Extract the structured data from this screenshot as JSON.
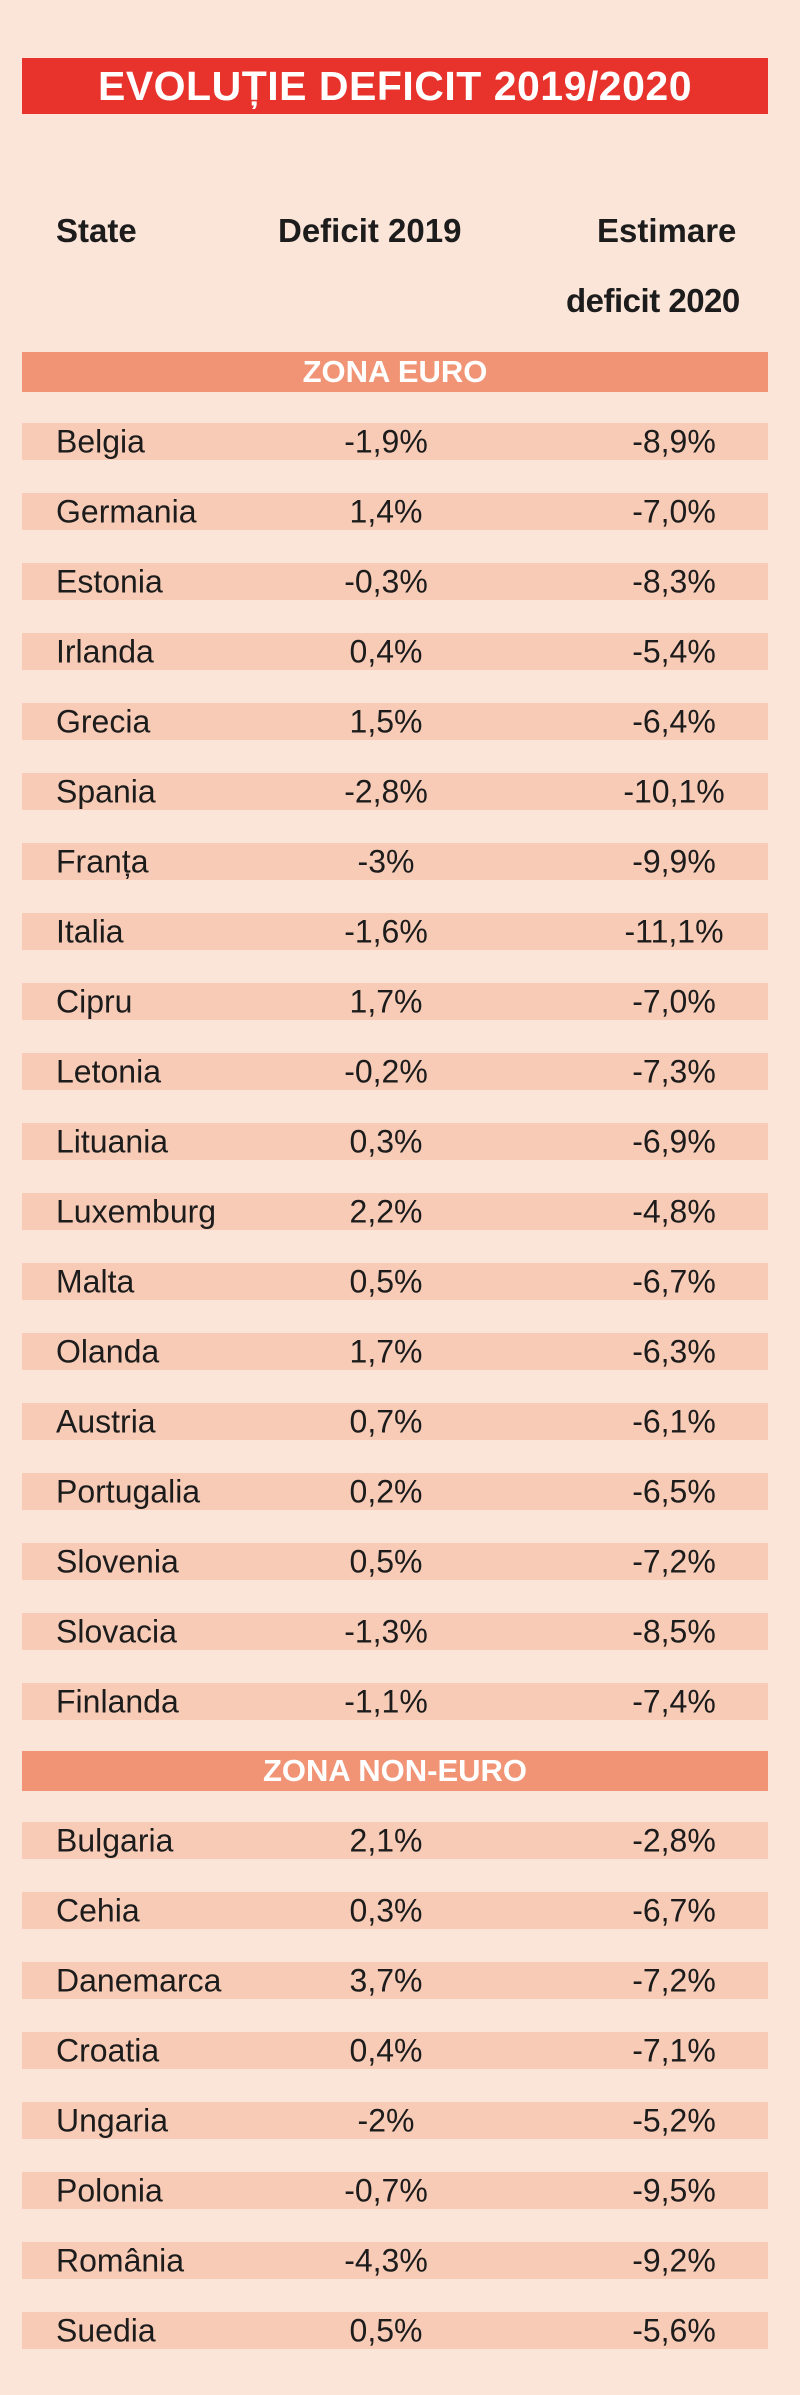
{
  "title": "EVOLUȚIE DEFICIT 2019/2020",
  "headers": {
    "state": "State",
    "deficit_2019": "Deficit 2019",
    "estimate_line1": "Estimare",
    "estimate_line2": "deficit 2020"
  },
  "sections": [
    {
      "label": "ZONA EURO",
      "rows": [
        {
          "state": "Belgia",
          "d2019": "-1,9%",
          "d2020": "-8,9%"
        },
        {
          "state": "Germania",
          "d2019": "1,4%",
          "d2020": "-7,0%"
        },
        {
          "state": "Estonia",
          "d2019": "-0,3%",
          "d2020": "-8,3%"
        },
        {
          "state": "Irlanda",
          "d2019": "0,4%",
          "d2020": "-5,4%"
        },
        {
          "state": "Grecia",
          "d2019": "1,5%",
          "d2020": "-6,4%"
        },
        {
          "state": "Spania",
          "d2019": "-2,8%",
          "d2020": "-10,1%"
        },
        {
          "state": "Franța",
          "d2019": "-3%",
          "d2020": "-9,9%"
        },
        {
          "state": "Italia",
          "d2019": "-1,6%",
          "d2020": "-11,1%"
        },
        {
          "state": "Cipru",
          "d2019": "1,7%",
          "d2020": "-7,0%"
        },
        {
          "state": "Letonia",
          "d2019": "-0,2%",
          "d2020": "-7,3%"
        },
        {
          "state": "Lituania",
          "d2019": "0,3%",
          "d2020": "-6,9%"
        },
        {
          "state": "Luxemburg",
          "d2019": "2,2%",
          "d2020": "-4,8%"
        },
        {
          "state": "Malta",
          "d2019": "0,5%",
          "d2020": "-6,7%"
        },
        {
          "state": "Olanda",
          "d2019": "1,7%",
          "d2020": "-6,3%"
        },
        {
          "state": "Austria",
          "d2019": "0,7%",
          "d2020": "-6,1%"
        },
        {
          "state": "Portugalia",
          "d2019": "0,2%",
          "d2020": "-6,5%"
        },
        {
          "state": "Slovenia",
          "d2019": "0,5%",
          "d2020": "-7,2%"
        },
        {
          "state": "Slovacia",
          "d2019": "-1,3%",
          "d2020": "-8,5%"
        },
        {
          "state": "Finlanda",
          "d2019": "-1,1%",
          "d2020": "-7,4%"
        }
      ]
    },
    {
      "label": "ZONA NON-EURO",
      "rows": [
        {
          "state": "Bulgaria",
          "d2019": "2,1%",
          "d2020": "-2,8%"
        },
        {
          "state": "Cehia",
          "d2019": "0,3%",
          "d2020": "-6,7%"
        },
        {
          "state": "Danemarca",
          "d2019": "3,7%",
          "d2020": "-7,2%"
        },
        {
          "state": "Croatia",
          "d2019": "0,4%",
          "d2020": "-7,1%"
        },
        {
          "state": "Ungaria",
          "d2019": "-2%",
          "d2020": "-5,2%"
        },
        {
          "state": "Polonia",
          "d2019": "-0,7%",
          "d2020": "-9,5%"
        },
        {
          "state": "România",
          "d2019": "-4,3%",
          "d2020": "-9,2%"
        },
        {
          "state": "Suedia",
          "d2019": "0,5%",
          "d2020": "-5,6%"
        }
      ]
    }
  ],
  "colors": {
    "background": "#fbe4d8",
    "title_bar": "#e8322c",
    "section_band": "#f19475",
    "row_band": "#f8cbb6"
  }
}
